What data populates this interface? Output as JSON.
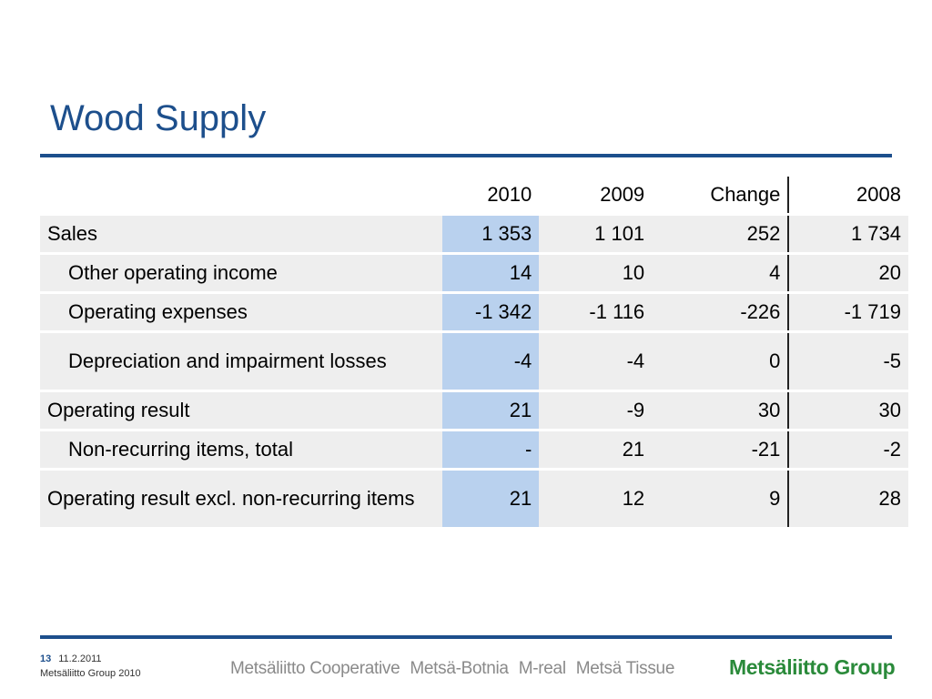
{
  "title": "Wood Supply",
  "table": {
    "headers": [
      "",
      "2010",
      "2009",
      "Change",
      "2008"
    ],
    "rows": [
      {
        "label": "Sales",
        "v2010": "1 353",
        "v2009": "1 101",
        "change": "252",
        "v2008": "1 734"
      },
      {
        "label": "Other operating income",
        "v2010": "14",
        "v2009": "10",
        "change": "4",
        "v2008": "20"
      },
      {
        "label": "Operating expenses",
        "v2010": "-1 342",
        "v2009": "-1 116",
        "change": "-226",
        "v2008": "-1 719"
      },
      {
        "label": "Depreciation and impairment losses",
        "v2010": "-4",
        "v2009": "-4",
        "change": "0",
        "v2008": "-5"
      },
      {
        "label": "Operating result",
        "v2010": "21",
        "v2009": "-9",
        "change": "30",
        "v2008": "30"
      },
      {
        "label": "Non-recurring items, total",
        "v2010": "-",
        "v2009": "21",
        "change": "-21",
        "v2008": "-2"
      },
      {
        "label": "Operating result excl. non-recurring items",
        "v2010": "21",
        "v2009": "12",
        "change": "9",
        "v2008": "28"
      }
    ]
  },
  "footer": {
    "page_number": "13",
    "date": "11.2.2011",
    "company": "Metsäliitto Group 2010",
    "brands": [
      "Metsäliitto Cooperative",
      "Metsä-Botnia",
      "M-real",
      "Metsä Tissue"
    ],
    "logo_text": "Metsäliitto Group"
  },
  "colors": {
    "title_blue": "#1d4f8c",
    "highlight_column": "#b9d1ee",
    "row_background": "#eeeeee",
    "logo_green": "#2a8a3a"
  }
}
